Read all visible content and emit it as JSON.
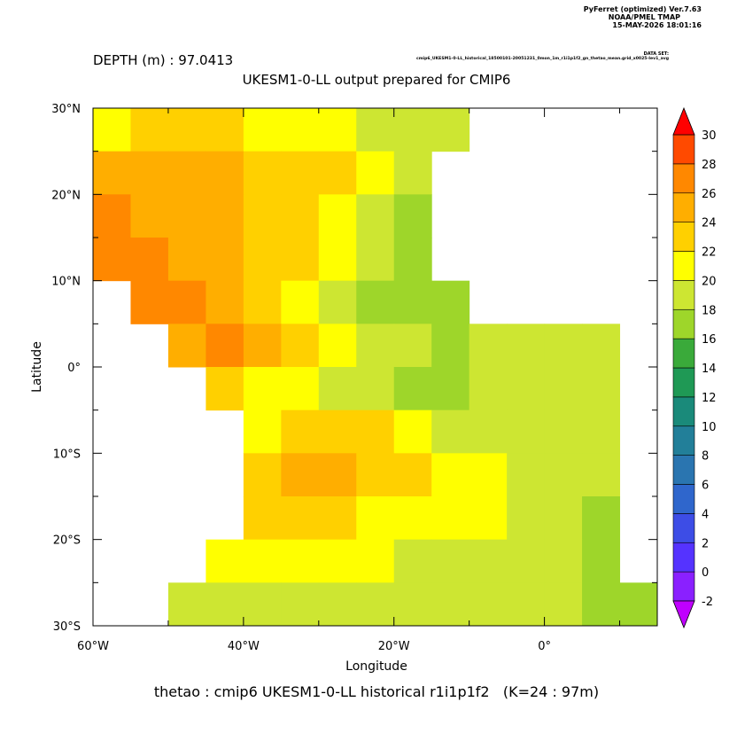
{
  "header": {
    "program": "PyFerret (optimized) Ver.7.63",
    "org": "NOAA/PMEL TMAP",
    "date": "15-MAY-2026 18:01:16",
    "dataset_label": "DATA SET:",
    "dataset": "cmip6_UKESM1-0-LL_historical_18500101-20051231_0mon_1m_r1i1p1f2_gn_thetao_mean.grid_x0025-lev1_avg"
  },
  "chart_data": {
    "type": "heatmap",
    "title": "UKESM1-0-LL output prepared for CMIP6",
    "subtitle": "DEPTH (m) : 97.0413",
    "x_label": "Longitude",
    "y_label": "Latitude",
    "footer": "thetao : cmip6 UKESM1-0-LL historical r1i1p1f2   (K=24 : 97m)",
    "xlim": [
      -60,
      15
    ],
    "ylim": [
      -30,
      30
    ],
    "cell_size": 5,
    "xticks": [
      {
        "value": -60,
        "label": "60°W"
      },
      {
        "value": -40,
        "label": "40°W"
      },
      {
        "value": -20,
        "label": "20°W"
      },
      {
        "value": 0,
        "label": "0°"
      }
    ],
    "yticks": [
      {
        "value": -30,
        "label": "30°S"
      },
      {
        "value": -20,
        "label": "20°S"
      },
      {
        "value": -10,
        "label": "10°S"
      },
      {
        "value": 0,
        "label": "0°"
      },
      {
        "value": 10,
        "label": "10°N"
      },
      {
        "value": 20,
        "label": "20°N"
      },
      {
        "value": 30,
        "label": "30°N"
      }
    ],
    "x": [
      -57.5,
      -52.5,
      -47.5,
      -42.5,
      -37.5,
      -32.5,
      -27.5,
      -22.5,
      -17.5,
      -12.5,
      -7.5,
      -2.5,
      2.5,
      7.5,
      12.5
    ],
    "y": [
      27.5,
      22.5,
      17.5,
      12.5,
      7.5,
      2.5,
      -2.5,
      -7.5,
      -12.5,
      -17.5,
      -22.5,
      -27.5
    ],
    "values": [
      [
        21,
        23,
        23,
        23,
        21,
        21,
        21,
        19,
        19,
        19,
        null,
        null,
        null,
        null,
        null
      ],
      [
        25,
        25,
        25,
        25,
        23,
        23,
        23,
        21,
        19,
        null,
        null,
        null,
        null,
        null,
        null
      ],
      [
        27,
        25,
        25,
        25,
        23,
        23,
        21,
        19,
        17,
        null,
        null,
        null,
        null,
        null,
        null
      ],
      [
        27,
        27,
        25,
        25,
        23,
        23,
        21,
        19,
        17,
        null,
        null,
        null,
        null,
        null,
        null
      ],
      [
        null,
        27,
        27,
        25,
        23,
        21,
        19,
        17,
        17,
        17,
        null,
        null,
        null,
        null,
        null
      ],
      [
        null,
        null,
        25,
        27,
        25,
        23,
        21,
        19,
        19,
        17,
        19,
        19,
        19,
        19,
        null
      ],
      [
        null,
        null,
        null,
        23,
        21,
        21,
        19,
        19,
        17,
        17,
        19,
        19,
        19,
        19,
        null
      ],
      [
        null,
        null,
        null,
        null,
        21,
        23,
        23,
        23,
        21,
        19,
        19,
        19,
        19,
        19,
        null
      ],
      [
        null,
        null,
        null,
        null,
        23,
        25,
        25,
        23,
        23,
        21,
        21,
        19,
        19,
        19,
        null
      ],
      [
        null,
        null,
        null,
        null,
        23,
        23,
        23,
        21,
        21,
        21,
        21,
        19,
        19,
        17,
        null
      ],
      [
        null,
        null,
        null,
        21,
        21,
        21,
        21,
        21,
        19,
        19,
        19,
        19,
        19,
        17,
        null
      ],
      [
        null,
        null,
        19,
        19,
        19,
        19,
        19,
        19,
        19,
        19,
        19,
        19,
        19,
        17,
        17
      ]
    ],
    "colorbar": {
      "levels": [
        -2,
        0,
        2,
        4,
        6,
        8,
        10,
        12,
        14,
        16,
        18,
        20,
        22,
        24,
        26,
        28,
        30
      ],
      "colors": [
        "#c000ff",
        "#8a20ff",
        "#5533ff",
        "#3d4de6",
        "#2f66cc",
        "#2a75b0",
        "#227f99",
        "#1a8a7a",
        "#1f9955",
        "#3aaa3a",
        "#9ed62a",
        "#cde632",
        "#ffff00",
        "#ffd000",
        "#ffae00",
        "#ff8800",
        "#ff4a00",
        "#ff0000"
      ]
    }
  }
}
